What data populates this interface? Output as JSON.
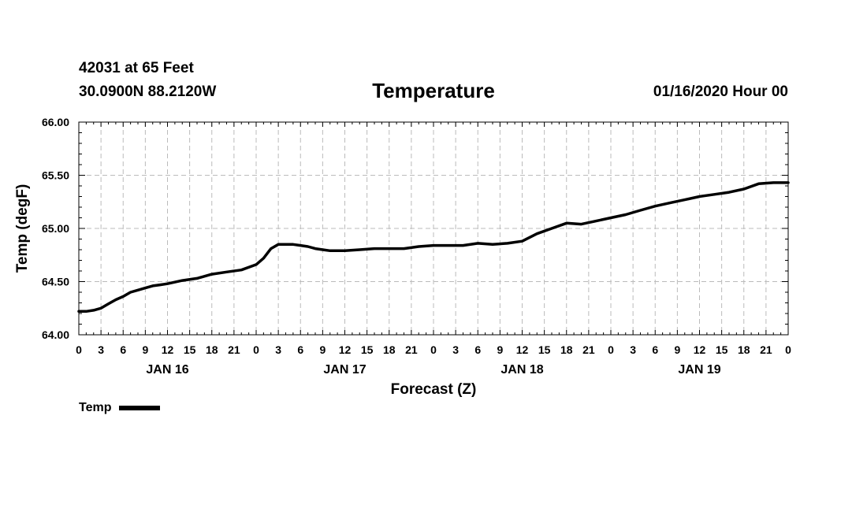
{
  "header": {
    "station": "42031 at 65 Feet",
    "coords": "30.0900N 88.2120W",
    "title": "Temperature",
    "run": "01/16/2020 Hour 00"
  },
  "colors": {
    "line": "#000000",
    "grid": "#bbbbbb",
    "axis": "#000000"
  },
  "chart_data": {
    "type": "line",
    "title": "Temperature",
    "xlabel": "Forecast (Z)",
    "ylabel": "Temp (degF)",
    "ylim": [
      64.0,
      66.0
    ],
    "xlim_hours": [
      0,
      96
    ],
    "yticks": [
      "64.00",
      "64.50",
      "65.00",
      "65.50",
      "66.00"
    ],
    "xtick_labels": [
      "0",
      "3",
      "6",
      "9",
      "12",
      "15",
      "18",
      "21",
      "0",
      "3",
      "6",
      "9",
      "12",
      "15",
      "18",
      "21",
      "0",
      "3",
      "6",
      "9",
      "12",
      "15",
      "18",
      "21",
      "0",
      "3",
      "6",
      "9",
      "12",
      "15",
      "18",
      "21",
      "0"
    ],
    "day_labels": [
      {
        "label": "JAN 16",
        "hour": 12
      },
      {
        "label": "JAN 17",
        "hour": 36
      },
      {
        "label": "JAN 18",
        "hour": 60
      },
      {
        "label": "JAN 19",
        "hour": 84
      }
    ],
    "grid": true,
    "legend": "bottom-left",
    "series": [
      {
        "name": "Temp",
        "x": [
          0,
          1,
          2,
          3,
          4,
          5,
          6,
          7,
          8,
          9,
          10,
          11,
          12,
          14,
          16,
          18,
          20,
          22,
          24,
          25,
          26,
          27,
          28,
          29,
          30,
          31,
          32,
          33,
          34,
          36,
          38,
          40,
          42,
          44,
          46,
          48,
          50,
          52,
          54,
          56,
          58,
          60,
          62,
          64,
          66,
          68,
          70,
          72,
          74,
          76,
          78,
          80,
          82,
          84,
          86,
          88,
          90,
          92,
          94,
          96
        ],
        "values": [
          64.22,
          64.22,
          64.23,
          64.25,
          64.29,
          64.33,
          64.36,
          64.4,
          64.42,
          64.44,
          64.46,
          64.47,
          64.48,
          64.51,
          64.53,
          64.57,
          64.59,
          64.61,
          64.66,
          64.72,
          64.81,
          64.85,
          64.85,
          64.85,
          64.84,
          64.83,
          64.81,
          64.8,
          64.79,
          64.79,
          64.8,
          64.81,
          64.81,
          64.81,
          64.83,
          64.84,
          64.84,
          64.84,
          64.86,
          64.85,
          64.86,
          64.88,
          64.95,
          65.0,
          65.05,
          65.04,
          65.07,
          65.1,
          65.13,
          65.17,
          65.21,
          65.24,
          65.27,
          65.3,
          65.32,
          65.34,
          65.37,
          65.42,
          65.43,
          65.43
        ]
      }
    ]
  }
}
